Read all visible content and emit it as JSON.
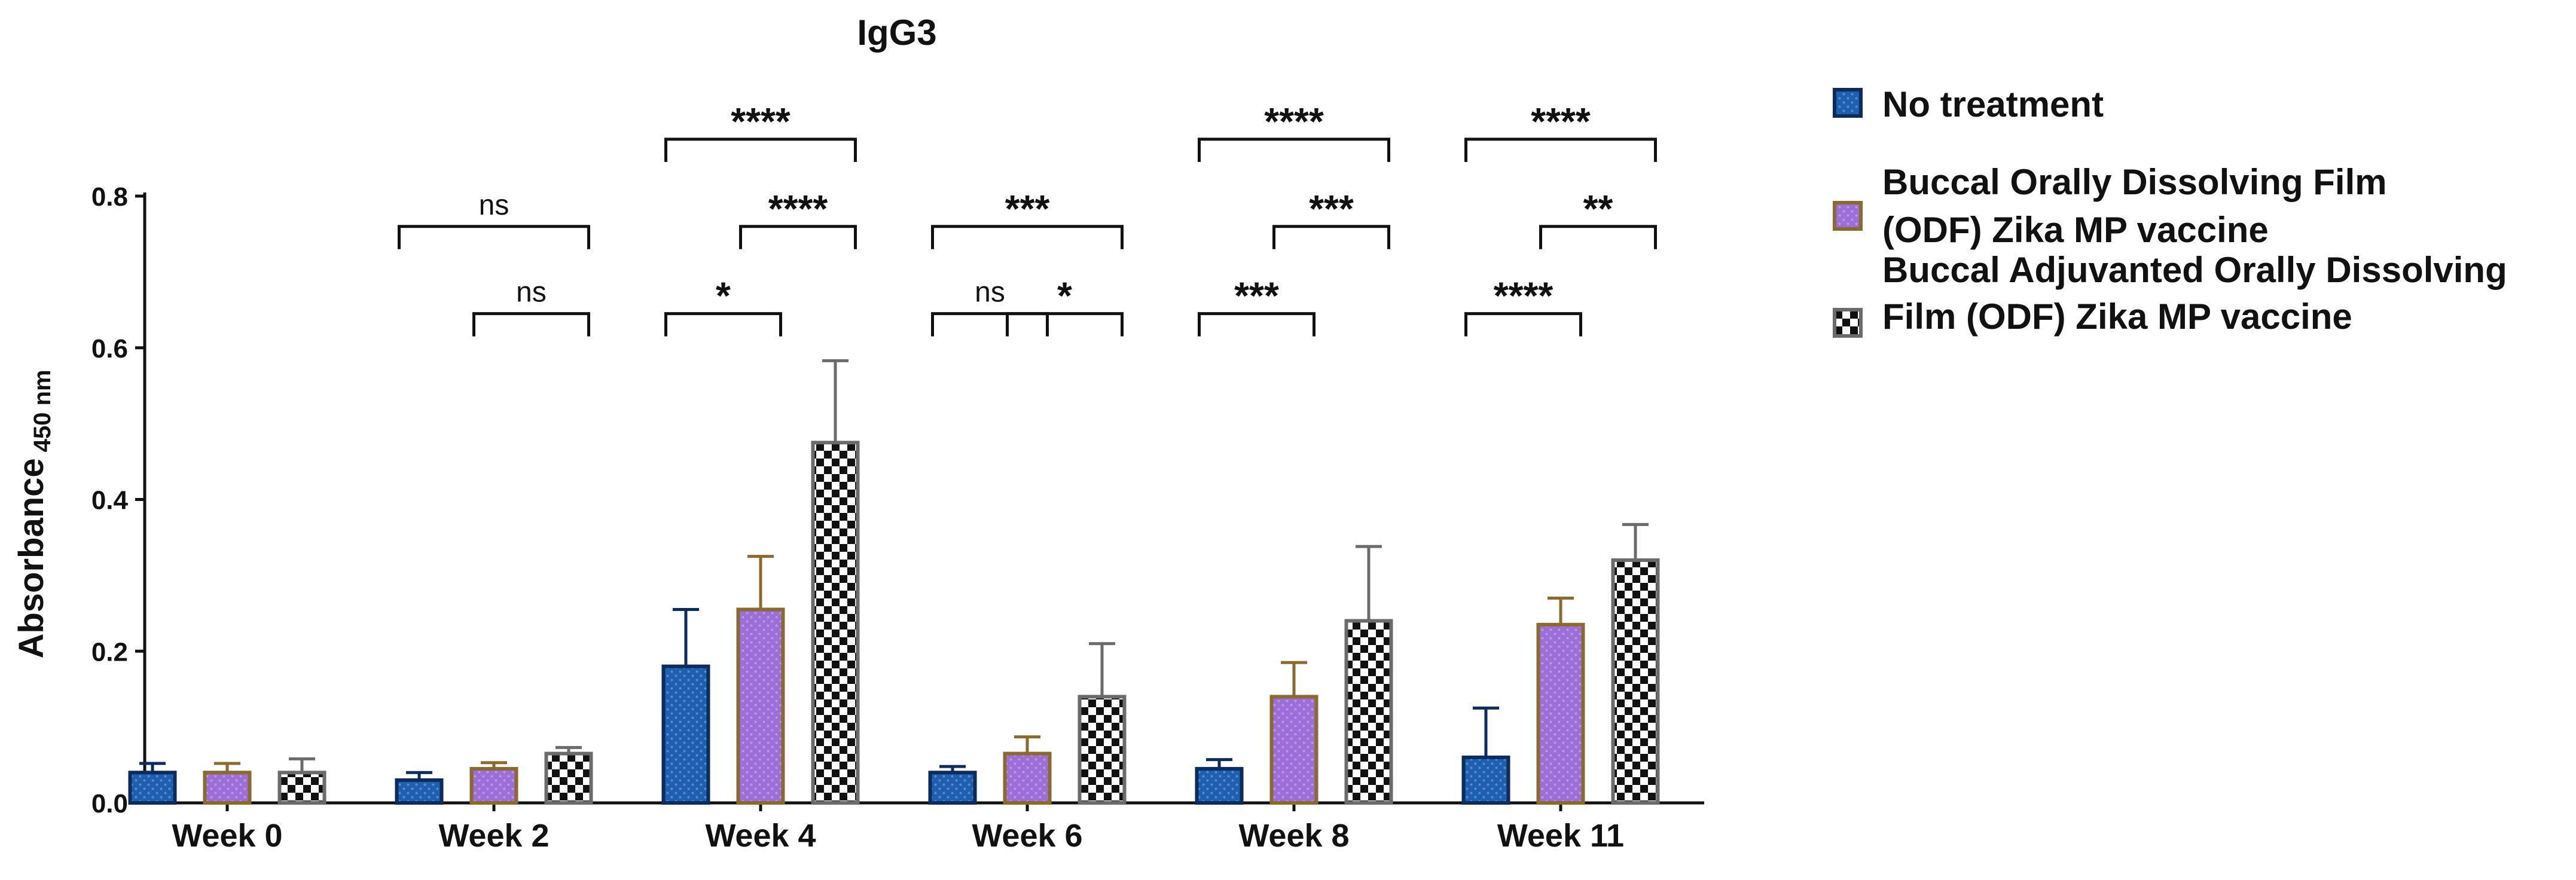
{
  "chart_data": {
    "type": "bar",
    "title": "IgG3",
    "ylabel_main": "Absorbance",
    "ylabel_sub": "450 nm",
    "xlabel": "",
    "ylim": [
      0,
      0.8
    ],
    "yticks": [
      "0.0",
      "0.2",
      "0.4",
      "0.6",
      "0.8"
    ],
    "categories": [
      "Week 0",
      "Week 2",
      "Week 4",
      "Week 6",
      "Week 8",
      "Week 11"
    ],
    "series": [
      {
        "name": "No treatment",
        "values": [
          0.04,
          0.03,
          0.18,
          0.04,
          0.045,
          0.06
        ],
        "errors": [
          0.012,
          0.01,
          0.075,
          0.008,
          0.012,
          0.065
        ],
        "fill": "#1f5fae",
        "stroke": "#0d2c5e",
        "pattern": "dots"
      },
      {
        "name": "Buccal Orally Dissolving Film (ODF) Zika MP vaccine",
        "values": [
          0.04,
          0.045,
          0.255,
          0.065,
          0.14,
          0.235
        ],
        "errors": [
          0.012,
          0.008,
          0.07,
          0.022,
          0.045,
          0.035
        ],
        "fill": "#9b6fd6",
        "stroke": "#8b6a2e",
        "pattern": "dots"
      },
      {
        "name": "Buccal Adjuvanted Orally Dissolving Film (ODF) Zika MP vaccine",
        "values": [
          0.04,
          0.065,
          0.475,
          0.14,
          0.24,
          0.32
        ],
        "errors": [
          0.018,
          0.008,
          0.108,
          0.07,
          0.098,
          0.047
        ],
        "fill": "#ffffff",
        "stroke": "#6b6b6b",
        "pattern": "checker"
      }
    ],
    "legend_entries": [
      [
        "No treatment"
      ],
      [
        "Buccal Orally Dissolving Film",
        "(ODF) Zika MP vaccine"
      ],
      [
        "Buccal Adjuvanted Orally Dissolving",
        "Film (ODF) Zika MP vaccine"
      ]
    ],
    "significance": [
      {
        "week": 1,
        "from": 0,
        "to": 2,
        "label": "ns",
        "level": 0.76
      },
      {
        "week": 1,
        "from": 1,
        "to": 2,
        "label": "ns",
        "level": 0.645
      },
      {
        "week": 2,
        "from": 0,
        "to": 2,
        "label": "****",
        "level": 0.875
      },
      {
        "week": 2,
        "from": 1,
        "to": 2,
        "label": "****",
        "level": 0.76
      },
      {
        "week": 2,
        "from": 0,
        "to": 1,
        "label": "*",
        "level": 0.645
      },
      {
        "week": 3,
        "from": 0,
        "to": 2,
        "label": "***",
        "level": 0.76
      },
      {
        "week": 3,
        "from": 0,
        "to": 1,
        "label": "ns",
        "level": 0.645
      },
      {
        "week": 3,
        "from": 1,
        "to": 2,
        "label": "*",
        "level": 0.645
      },
      {
        "week": 4,
        "from": 0,
        "to": 2,
        "label": "****",
        "level": 0.875
      },
      {
        "week": 4,
        "from": 1,
        "to": 2,
        "label": "***",
        "level": 0.76
      },
      {
        "week": 4,
        "from": 0,
        "to": 1,
        "label": "***",
        "level": 0.645
      },
      {
        "week": 5,
        "from": 0,
        "to": 2,
        "label": "****",
        "level": 0.875
      },
      {
        "week": 5,
        "from": 1,
        "to": 2,
        "label": "**",
        "level": 0.76
      },
      {
        "week": 5,
        "from": 0,
        "to": 1,
        "label": "****",
        "level": 0.645
      }
    ]
  }
}
